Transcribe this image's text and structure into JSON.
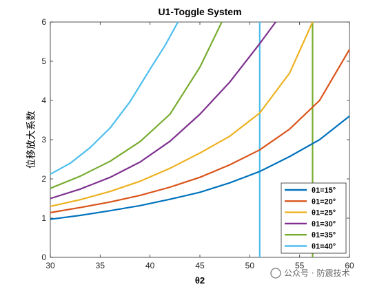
{
  "chart_data": {
    "type": "line",
    "title": "U1-Toggle System",
    "xlabel": "θ2",
    "ylabel": "位移放大系数",
    "xlim": [
      30,
      60
    ],
    "ylim": [
      0,
      6
    ],
    "xticks": [
      30,
      35,
      40,
      45,
      50,
      55,
      60
    ],
    "yticks": [
      0,
      1,
      2,
      3,
      4,
      5,
      6
    ],
    "grid": false,
    "legend_position": "bottom-right",
    "series": [
      {
        "name": "θ1=15°",
        "color": "#0072BD",
        "x": [
          30,
          33,
          36,
          39,
          42,
          45,
          48,
          51,
          54,
          57,
          60
        ],
        "y": [
          0.97,
          1.07,
          1.19,
          1.32,
          1.48,
          1.66,
          1.9,
          2.19,
          2.57,
          3.0,
          3.6
        ]
      },
      {
        "name": "θ1=20°",
        "color": "#D95319",
        "x": [
          30,
          33,
          36,
          39,
          42,
          45,
          48,
          51,
          54,
          57,
          60
        ],
        "y": [
          1.14,
          1.27,
          1.41,
          1.58,
          1.79,
          2.04,
          2.36,
          2.74,
          3.27,
          4.0,
          5.3
        ]
      },
      {
        "name": "θ1=25°",
        "color": "#EDB120",
        "x": [
          30,
          33,
          36,
          39,
          42,
          45,
          48,
          51,
          54,
          56.3
        ],
        "y": [
          1.3,
          1.47,
          1.68,
          1.94,
          2.27,
          2.66,
          3.09,
          3.68,
          4.7,
          6.0
        ]
      },
      {
        "name": "θ1=30°",
        "color": "#7E2F8E",
        "x": [
          30,
          33,
          36,
          39,
          42,
          45,
          48,
          51,
          52.6
        ],
        "y": [
          1.5,
          1.74,
          2.04,
          2.43,
          2.96,
          3.65,
          4.47,
          5.45,
          6.0
        ]
      },
      {
        "name": "θ1=35°",
        "color": "#77AC30",
        "x": [
          30,
          33,
          36,
          39,
          42,
          45,
          47.2
        ],
        "y": [
          1.76,
          2.07,
          2.45,
          2.95,
          3.65,
          4.85,
          6.0
        ]
      },
      {
        "name": "θ1=40°",
        "color": "#4DBEEE",
        "x": [
          30,
          32,
          34,
          36,
          38,
          40,
          41.5,
          42.8
        ],
        "y": [
          2.12,
          2.4,
          2.8,
          3.3,
          3.97,
          4.8,
          5.4,
          6.0
        ]
      }
    ],
    "vertical_lines": [
      {
        "x": 51,
        "color": "#4DBEEE"
      },
      {
        "x": 56.3,
        "color": "#77AC30"
      }
    ]
  },
  "watermark": "公众号 · 防震技术"
}
